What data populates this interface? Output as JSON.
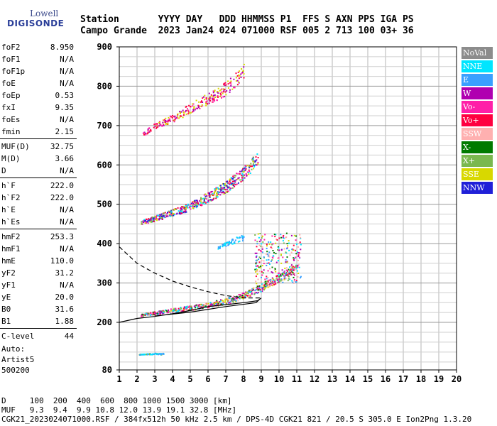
{
  "logo": {
    "line1": "Lowell",
    "line2": "DIGISONDE"
  },
  "header": {
    "row1": "Station       YYYY DAY   DDD HHMMSS P1  FFS S AXN PPS IGA PS",
    "row2": "Campo Grande  2023 Jan24 024 071000 RSF 005 2 713 100 03+ 36"
  },
  "params": [
    {
      "name": "foF2",
      "value": "8.950"
    },
    {
      "name": "foF1",
      "value": "N/A"
    },
    {
      "name": "foF1p",
      "value": "N/A"
    },
    {
      "name": "foE",
      "value": "N/A"
    },
    {
      "name": "foEp",
      "value": "0.53"
    },
    {
      "name": "fxI",
      "value": "9.35"
    },
    {
      "name": "foEs",
      "value": "N/A"
    },
    {
      "name": "fmin",
      "value": "2.15"
    },
    {
      "name": "MUF(D)",
      "value": "32.75"
    },
    {
      "name": "M(D)",
      "value": "3.66"
    },
    {
      "name": "D",
      "value": "N/A"
    },
    {
      "name": "h`F",
      "value": "222.0"
    },
    {
      "name": "h`F2",
      "value": "222.0"
    },
    {
      "name": "h`E",
      "value": "N/A"
    },
    {
      "name": "h`Es",
      "value": "N/A"
    },
    {
      "name": "hmF2",
      "value": "253.3"
    },
    {
      "name": "hmF1",
      "value": "N/A"
    },
    {
      "name": "hmE",
      "value": "110.0"
    },
    {
      "name": "yF2",
      "value": "31.2"
    },
    {
      "name": "yF1",
      "value": "N/A"
    },
    {
      "name": "yE",
      "value": "20.0"
    },
    {
      "name": "B0",
      "value": "31.6"
    },
    {
      "name": "B1",
      "value": "1.88"
    },
    {
      "name": "C-level",
      "value": "44"
    }
  ],
  "autoscale": {
    "line1": "Auto:",
    "line2": "Artist5",
    "line3": "500200"
  },
  "legend": [
    {
      "label": "NoVal",
      "color": "#8c8c8c"
    },
    {
      "label": "NNE",
      "color": "#00e5ff"
    },
    {
      "label": "E",
      "color": "#3aa0ff"
    },
    {
      "label": "W",
      "color": "#b000b0"
    },
    {
      "label": "Vo-",
      "color": "#ff1fa8"
    },
    {
      "label": "Vo+",
      "color": "#ff0040"
    },
    {
      "label": "SSW",
      "color": "#ffb0b0"
    },
    {
      "label": "X-",
      "color": "#007a00"
    },
    {
      "label": "X+",
      "color": "#7ab84f"
    },
    {
      "label": "SSE",
      "color": "#d8d800"
    },
    {
      "label": "NNW",
      "color": "#2020d8"
    }
  ],
  "footer": {
    "line1": "D     100  200  400  600  800 1000 1500 3000 [km]",
    "line2": "MUF   9.3  9.4  9.9 10.8 12.0 13.9 19.1 32.8 [MHz]",
    "line3": "CGK21_2023024071000.RSF / 384fx512h 50 kHz 2.5 km / DPS-4D CGK21 821 / 20.5 S 305.0 E Ion2Png 1.3.20"
  },
  "chart_data": {
    "type": "scatter",
    "xlim": [
      1,
      20
    ],
    "ylim": [
      80,
      900
    ],
    "xticks": [
      1,
      2,
      3,
      4,
      5,
      6,
      7,
      8,
      9,
      10,
      11,
      12,
      13,
      14,
      15,
      16,
      17,
      18,
      19,
      20
    ],
    "yticks": [
      80,
      200,
      300,
      400,
      500,
      600,
      700,
      800,
      900
    ],
    "grid": true,
    "legend_position": "right",
    "traces": [
      {
        "name": "F2 first hop",
        "points": [
          [
            2.2,
            220
          ],
          [
            3,
            225
          ],
          [
            4,
            232
          ],
          [
            5,
            238
          ],
          [
            6,
            245
          ],
          [
            7,
            255
          ],
          [
            8,
            270
          ],
          [
            9,
            290
          ],
          [
            10,
            315
          ],
          [
            11,
            340
          ]
        ]
      },
      {
        "name": "F2 second hop",
        "points": [
          [
            2.2,
            455
          ],
          [
            3,
            465
          ],
          [
            4,
            480
          ],
          [
            5,
            495
          ],
          [
            6,
            520
          ],
          [
            7,
            545
          ],
          [
            8,
            580
          ],
          [
            8.8,
            620
          ]
        ]
      },
      {
        "name": "F2 third hop",
        "points": [
          [
            2.3,
            680
          ],
          [
            3,
            700
          ],
          [
            4,
            720
          ],
          [
            5,
            745
          ],
          [
            6,
            770
          ],
          [
            7,
            795
          ],
          [
            8,
            840
          ]
        ]
      },
      {
        "name": "sporadic low",
        "points": [
          [
            2.1,
            120
          ],
          [
            2.5,
            121
          ],
          [
            3,
            122
          ],
          [
            3.5,
            121
          ]
        ]
      },
      {
        "name": "scatter patch",
        "points": [
          [
            6.5,
            390
          ],
          [
            7,
            400
          ],
          [
            7.5,
            410
          ],
          [
            8,
            420
          ]
        ]
      }
    ],
    "profile_solid": [
      [
        1,
        200
      ],
      [
        2,
        210
      ],
      [
        3,
        215
      ],
      [
        4,
        222
      ],
      [
        5,
        230
      ],
      [
        6,
        240
      ],
      [
        7,
        245
      ],
      [
        8,
        250
      ],
      [
        8.8,
        255
      ],
      [
        9,
        262
      ],
      [
        8.7,
        250
      ],
      [
        7,
        240
      ],
      [
        5,
        226
      ],
      [
        3,
        216
      ]
    ],
    "profile_dashed": [
      [
        1,
        392
      ],
      [
        2,
        350
      ],
      [
        3,
        325
      ],
      [
        4,
        305
      ],
      [
        5,
        290
      ],
      [
        6,
        278
      ],
      [
        7,
        268
      ],
      [
        8,
        262
      ],
      [
        9,
        262
      ]
    ]
  }
}
